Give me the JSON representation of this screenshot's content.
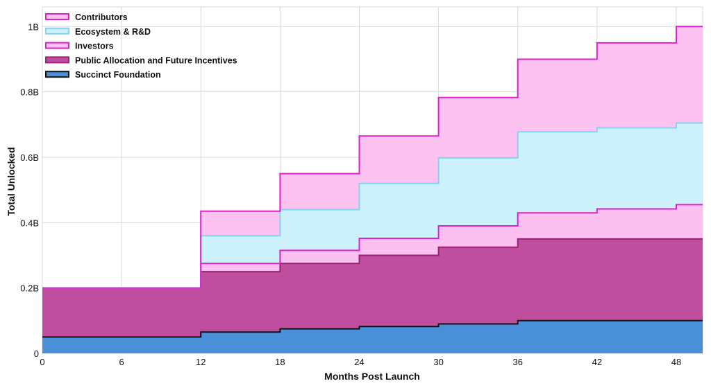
{
  "chart_data": {
    "type": "area",
    "step": true,
    "title": "",
    "xlabel": "Months Post Launch",
    "ylabel": "Total Unlocked",
    "x": [
      0,
      6,
      12,
      18,
      24,
      30,
      36,
      42,
      48
    ],
    "xlim": [
      0,
      50
    ],
    "ylim": [
      0,
      1.06
    ],
    "xticks": [
      0,
      6,
      12,
      18,
      24,
      30,
      36,
      42,
      48
    ],
    "xtick_labels": [
      "0",
      "6",
      "12",
      "18",
      "24",
      "30",
      "36",
      "42",
      "48"
    ],
    "yticks": [
      0,
      0.2,
      0.4,
      0.6,
      0.8,
      1.0
    ],
    "ytick_labels": [
      "0",
      "0.2B",
      "0.4B",
      "0.6B",
      "0.8B",
      "1B"
    ],
    "grid": true,
    "legend_position": "top-left",
    "stacked_series": [
      {
        "name": "Succinct Foundation",
        "fill": "#4a90d9",
        "line": "#111111",
        "values": [
          0.05,
          0.05,
          0.065,
          0.075,
          0.082,
          0.09,
          0.1,
          0.1,
          0.1
        ]
      },
      {
        "name": "Public Allocation and Future Incentives",
        "fill": "#bf4f9e",
        "line": "#9b1f72",
        "values": [
          0.15,
          0.15,
          0.185,
          0.2,
          0.218,
          0.235,
          0.25,
          0.25,
          0.25
        ]
      },
      {
        "name": "Investors",
        "fill": "#fbbff0",
        "line": "#e020c8",
        "values": [
          0,
          0,
          0.025,
          0.04,
          0.052,
          0.065,
          0.08,
          0.092,
          0.105
        ]
      },
      {
        "name": "Ecosystem & R&D",
        "fill": "#ccf1fb",
        "line": "#7fd4f0",
        "values": [
          0,
          0,
          0.085,
          0.125,
          0.168,
          0.208,
          0.248,
          0.248,
          0.25
        ]
      },
      {
        "name": "Contributors",
        "fill": "#fcc2f0",
        "line": "#e020c8",
        "values": [
          0,
          0,
          0.075,
          0.11,
          0.145,
          0.185,
          0.222,
          0.26,
          0.295
        ]
      }
    ],
    "legend": [
      "Contributors",
      "Ecosystem & R&D",
      "Investors",
      "Public Allocation and Future Incentives",
      "Succinct Foundation"
    ]
  }
}
